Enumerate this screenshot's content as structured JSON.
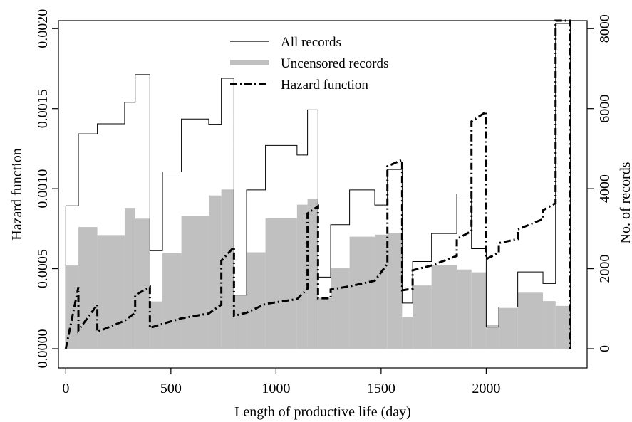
{
  "chart_data": {
    "type": "line",
    "xlabel": "Length of productive life (day)",
    "ylabel_left": "Hazard function",
    "ylabel_right": "No. of records",
    "xlim": [
      -35,
      2480
    ],
    "ylim_left": [
      -0.00012,
      0.00205
    ],
    "ylim_right": [
      -480,
      8200
    ],
    "x_ticks": [
      0,
      500,
      1000,
      1500,
      2000
    ],
    "y_ticks_left": [
      0.0,
      0.0005,
      0.001,
      0.0015,
      0.002
    ],
    "y_tick_labels_left": [
      "0.0000",
      "0.0005",
      "0.0010",
      "0.0015",
      "0.0020"
    ],
    "y_ticks_right": [
      0,
      2000,
      4000,
      6000,
      8000
    ],
    "y_tick_labels_right": [
      "0",
      "2000",
      "4000",
      "6000",
      "8000"
    ],
    "grid": false,
    "legend_position": "top-center",
    "legend": [
      {
        "label": "All records",
        "style": "thin-solid"
      },
      {
        "label": "Uncensored records",
        "style": "gray-thick"
      },
      {
        "label": "Hazard function",
        "style": "dash-dot"
      }
    ],
    "colors": {
      "all_records": "#000000",
      "uncensored": "#c0c0c0",
      "hazard": "#000000"
    },
    "bin_edges": [
      0,
      60,
      150,
      280,
      330,
      400,
      460,
      550,
      680,
      740,
      800,
      860,
      950,
      1100,
      1150,
      1200,
      1260,
      1350,
      1470,
      1530,
      1600,
      1650,
      1740,
      1860,
      1930,
      2000,
      2060,
      2150,
      2270,
      2330,
      2400
    ],
    "series": [
      {
        "name": "All records",
        "axis": "right",
        "render": "step",
        "values": [
          3570,
          5370,
          5620,
          6160,
          6850,
          2450,
          4420,
          5740,
          5610,
          6760,
          1340,
          3970,
          5080,
          4840,
          5970,
          1790,
          3100,
          3970,
          3590,
          4480,
          1140,
          2180,
          2880,
          3870,
          2500,
          540,
          1040,
          1920,
          1630,
          8130
        ]
      },
      {
        "name": "Uncensored records",
        "axis": "right",
        "render": "filled-step",
        "values": [
          2080,
          3040,
          2840,
          3520,
          3250,
          1180,
          2390,
          3320,
          3830,
          3980,
          1350,
          2410,
          3260,
          3600,
          3740,
          1270,
          2020,
          2800,
          2850,
          2900,
          800,
          1580,
          2090,
          1980,
          1910,
          600,
          1020,
          1400,
          1190,
          1070
        ]
      },
      {
        "name": "Hazard function",
        "axis": "left",
        "render": "line",
        "points": [
          [
            0,
            0.0
          ],
          [
            60,
            0.000385
          ],
          [
            60,
            0.000115
          ],
          [
            150,
            0.000275
          ],
          [
            150,
            0.000105
          ],
          [
            280,
            0.000175
          ],
          [
            330,
            0.000225
          ],
          [
            330,
            0.000335
          ],
          [
            400,
            0.000385
          ],
          [
            400,
            0.00013
          ],
          [
            460,
            0.000155
          ],
          [
            550,
            0.00019
          ],
          [
            680,
            0.00022
          ],
          [
            740,
            0.000275
          ],
          [
            740,
            0.00055
          ],
          [
            800,
            0.000635
          ],
          [
            800,
            0.000205
          ],
          [
            860,
            0.000225
          ],
          [
            950,
            0.00028
          ],
          [
            1100,
            0.00031
          ],
          [
            1150,
            0.000375
          ],
          [
            1150,
            0.000845
          ],
          [
            1200,
            0.00089
          ],
          [
            1200,
            0.000315
          ],
          [
            1260,
            0.000315
          ],
          [
            1260,
            0.00037
          ],
          [
            1350,
            0.00039
          ],
          [
            1470,
            0.000425
          ],
          [
            1530,
            0.00053
          ],
          [
            1530,
            0.00114
          ],
          [
            1600,
            0.00118
          ],
          [
            1600,
            0.000365
          ],
          [
            1650,
            0.000375
          ],
          [
            1650,
            0.00049
          ],
          [
            1740,
            0.00052
          ],
          [
            1860,
            0.00058
          ],
          [
            1860,
            0.000685
          ],
          [
            1930,
            0.000735
          ],
          [
            1930,
            0.00142
          ],
          [
            2000,
            0.00148
          ],
          [
            2000,
            0.00056
          ],
          [
            2060,
            0.0006
          ],
          [
            2060,
            0.00066
          ],
          [
            2150,
            0.000685
          ],
          [
            2150,
            0.000745
          ],
          [
            2270,
            0.00081
          ],
          [
            2270,
            0.000865
          ],
          [
            2330,
            0.00091
          ],
          [
            2330,
            0.00205
          ],
          [
            2400,
            0.00205
          ],
          [
            2400,
            0.0
          ]
        ]
      }
    ]
  }
}
